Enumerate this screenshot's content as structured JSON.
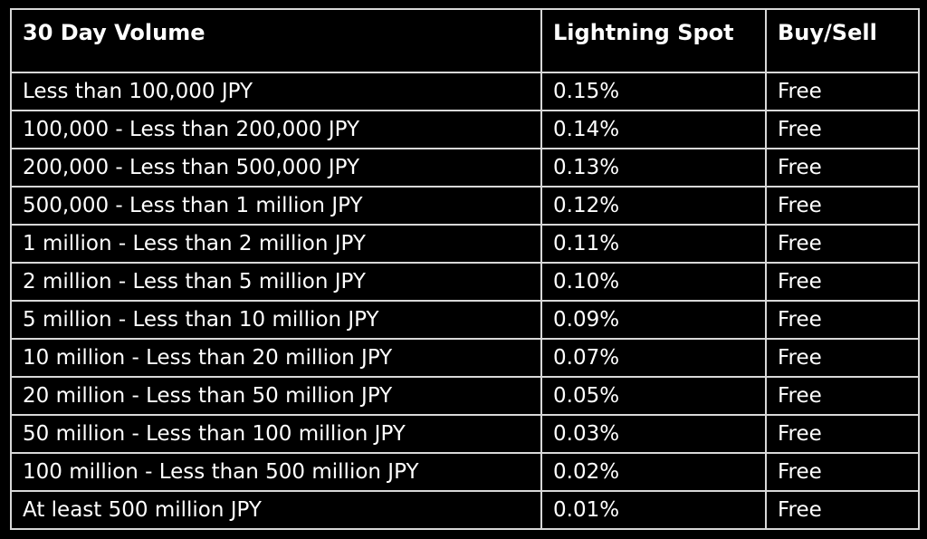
{
  "table": {
    "headers": [
      "30 Day Volume",
      "Lightning Spot",
      "Buy/Sell"
    ],
    "rows": [
      [
        "Less than 100,000 JPY",
        "0.15%",
        "Free"
      ],
      [
        "100,000 - Less than 200,000 JPY",
        "0.14%",
        "Free"
      ],
      [
        "200,000 - Less than 500,000 JPY",
        "0.13%",
        "Free"
      ],
      [
        "500,000 - Less than 1 million JPY",
        "0.12%",
        "Free"
      ],
      [
        "1 million - Less than 2 million JPY",
        "0.11%",
        "Free"
      ],
      [
        "2 million - Less than 5 million JPY",
        "0.10%",
        "Free"
      ],
      [
        "5 million - Less than 10 million JPY",
        "0.09%",
        "Free"
      ],
      [
        "10 million - Less than 20 million JPY",
        "0.07%",
        "Free"
      ],
      [
        "20 million - Less than 50 million JPY",
        "0.05%",
        "Free"
      ],
      [
        "50 million - Less than 100 million JPY",
        "0.03%",
        "Free"
      ],
      [
        "100 million - Less than 500 million JPY",
        "0.02%",
        "Free"
      ],
      [
        "At least 500 million JPY",
        "0.01%",
        "Free"
      ]
    ]
  },
  "colors": {
    "background": "#000000",
    "text": "#ffffff",
    "border": "#d8d8d8"
  }
}
